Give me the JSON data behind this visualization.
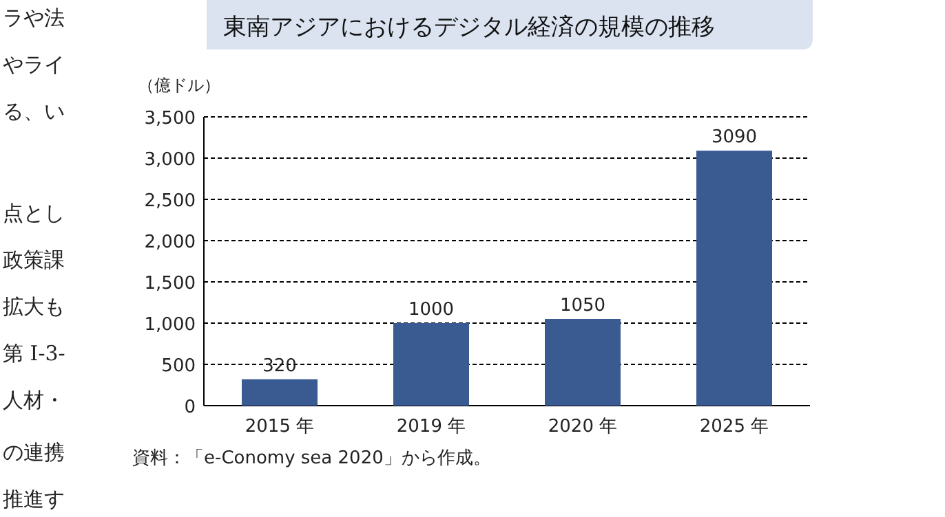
{
  "chart_data": {
    "type": "bar",
    "title": "東南アジアにおけるデジタル経済の規模の推移",
    "ylabel": "（億ドル）",
    "categories": [
      "2015 年",
      "2019 年",
      "2020 年",
      "2025 年"
    ],
    "values": [
      320,
      1000,
      1050,
      3090
    ],
    "color": "#3a5a92",
    "ylim": [
      0,
      3500
    ],
    "yticks": [
      0,
      500,
      {
        "value": 1000,
        "label": "1,000"
      },
      {
        "value": 1500,
        "label": "1,500"
      },
      {
        "value": 2000,
        "label": "2,000"
      },
      {
        "value": 2500,
        "label": "2,500"
      },
      {
        "value": 3000,
        "label": "3,000"
      },
      {
        "value": 3500,
        "label": "3,500"
      }
    ],
    "grid": "y",
    "data_labels": true,
    "annotations": [
      "資料：「e-Conomy sea 2020」から作成。",
      "ラや法",
      "やライ",
      "る、い",
      "点とし",
      "政策課",
      "拡大も",
      "第 I-3-",
      "人材・",
      "の連携",
      "推進す"
    ]
  }
}
